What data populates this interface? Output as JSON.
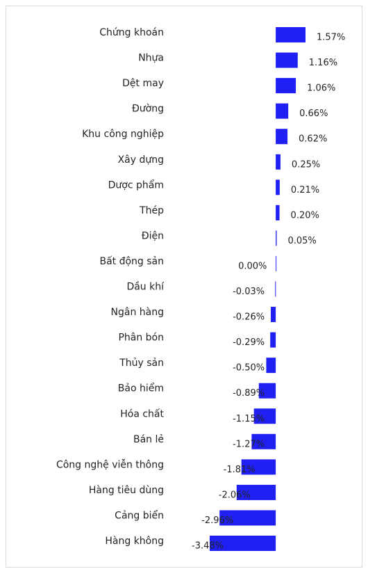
{
  "chart_data": {
    "type": "bar",
    "orientation": "horizontal",
    "color": "#2020f5",
    "categories": [
      "Chứng khoán",
      "Nhựa",
      "Dệt may",
      "Đường",
      "Khu công nghiệp",
      "Xây dựng",
      "Dược phẩm",
      "Thép",
      "Điện",
      "Bất động sản",
      "Dầu khí",
      "Ngân hàng",
      "Phân bón",
      "Thủy sản",
      "Bảo hiểm",
      "Hóa chất",
      "Bán lẻ",
      "Công nghệ viễn thông",
      "Hàng tiêu dùng",
      "Cảng biển",
      "Hàng không"
    ],
    "values": [
      1.57,
      1.16,
      1.06,
      0.66,
      0.62,
      0.25,
      0.21,
      0.2,
      0.05,
      0.0,
      -0.03,
      -0.26,
      -0.29,
      -0.5,
      -0.89,
      -1.15,
      -1.27,
      -1.81,
      -2.06,
      -2.96,
      -3.48
    ],
    "value_labels": [
      "1.57%",
      "1.16%",
      "1.06%",
      "0.66%",
      "0.62%",
      "0.25%",
      "0.21%",
      "0.20%",
      "0.05%",
      "0.00%",
      "-0.03%",
      "-0.26%",
      "-0.29%",
      "-0.50%",
      "-0.89%",
      "-1.15%",
      "-1.27%",
      "-1.81%",
      "-2.06%",
      "-2.96%",
      "-3.48%"
    ]
  }
}
